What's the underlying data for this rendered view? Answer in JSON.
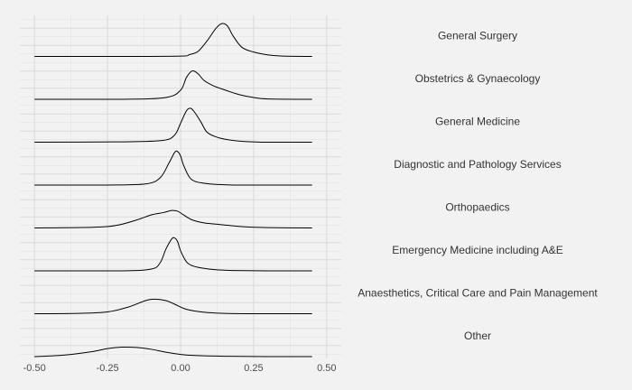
{
  "chart_data": {
    "type": "area",
    "subtype": "density-facets",
    "title": "",
    "xlabel": "",
    "ylabel": "",
    "xlim": [
      -0.55,
      0.55
    ],
    "xticks": [
      -0.5,
      -0.25,
      0.0,
      0.25,
      0.5
    ],
    "xtick_labels": [
      "-0.50",
      "-0.25",
      "0.00",
      "0.25",
      "0.50"
    ],
    "data_range": [
      -0.5,
      0.45
    ],
    "grid": true,
    "background": "#f2f2f2",
    "grid_color": "#d9d9d9",
    "line_color": "#000000",
    "series": [
      {
        "name": "General Surgery",
        "x": [
          -0.5,
          -0.2,
          0.0,
          0.03,
          0.06,
          0.09,
          0.12,
          0.14,
          0.16,
          0.18,
          0.21,
          0.25,
          0.3,
          0.35,
          0.45
        ],
        "y": [
          0.0,
          0.0,
          0.01,
          0.05,
          0.14,
          0.42,
          0.76,
          0.9,
          0.84,
          0.56,
          0.25,
          0.12,
          0.04,
          0.01,
          0.0
        ]
      },
      {
        "name": "Obstetrics & Gynaecology",
        "x": [
          -0.5,
          -0.2,
          -0.05,
          0.0,
          0.02,
          0.04,
          0.06,
          0.08,
          0.11,
          0.15,
          0.2,
          0.25,
          0.3,
          0.45
        ],
        "y": [
          0.0,
          0.0,
          0.05,
          0.25,
          0.6,
          0.78,
          0.7,
          0.52,
          0.38,
          0.26,
          0.13,
          0.05,
          0.01,
          0.0
        ]
      },
      {
        "name": "General Medicine",
        "x": [
          -0.5,
          -0.2,
          -0.06,
          -0.02,
          0.0,
          0.02,
          0.035,
          0.05,
          0.07,
          0.09,
          0.12,
          0.16,
          0.22,
          0.3,
          0.45
        ],
        "y": [
          0.0,
          0.01,
          0.05,
          0.2,
          0.52,
          0.86,
          0.93,
          0.8,
          0.55,
          0.28,
          0.15,
          0.07,
          0.02,
          0.0,
          0.0
        ]
      },
      {
        "name": "Diagnostic and Pathology Services",
        "x": [
          -0.5,
          -0.25,
          -0.12,
          -0.07,
          -0.04,
          -0.02,
          -0.01,
          0.0,
          0.01,
          0.03,
          0.05,
          0.08,
          0.12,
          0.2,
          0.45
        ],
        "y": [
          0.0,
          0.0,
          0.03,
          0.2,
          0.6,
          0.9,
          0.92,
          0.8,
          0.55,
          0.22,
          0.1,
          0.05,
          0.02,
          0.0,
          0.0
        ]
      },
      {
        "name": "Orthopaedics",
        "x": [
          -0.5,
          -0.3,
          -0.22,
          -0.15,
          -0.1,
          -0.06,
          -0.03,
          -0.01,
          0.01,
          0.04,
          0.08,
          0.14,
          0.22,
          0.3,
          0.45
        ],
        "y": [
          0.0,
          0.02,
          0.07,
          0.22,
          0.36,
          0.42,
          0.48,
          0.46,
          0.36,
          0.22,
          0.14,
          0.09,
          0.03,
          0.01,
          0.0
        ]
      },
      {
        "name": "Emergency Medicine including A&E",
        "x": [
          -0.5,
          -0.2,
          -0.1,
          -0.07,
          -0.05,
          -0.03,
          -0.02,
          -0.01,
          0.0,
          0.02,
          0.04,
          0.07,
          0.12,
          0.18,
          0.3,
          0.45
        ],
        "y": [
          0.0,
          0.0,
          0.05,
          0.22,
          0.6,
          0.88,
          0.9,
          0.8,
          0.55,
          0.25,
          0.14,
          0.08,
          0.03,
          0.01,
          0.0,
          0.0
        ]
      },
      {
        "name": "Anaesthetics, Critical Care and Pain Management",
        "x": [
          -0.5,
          -0.35,
          -0.25,
          -0.18,
          -0.12,
          -0.09,
          -0.05,
          -0.02,
          0.02,
          0.08,
          0.15,
          0.25,
          0.45
        ],
        "y": [
          0.0,
          0.01,
          0.05,
          0.18,
          0.36,
          0.4,
          0.36,
          0.26,
          0.12,
          0.04,
          0.01,
          0.0,
          0.0
        ]
      },
      {
        "name": "Other",
        "x": [
          -0.5,
          -0.4,
          -0.3,
          -0.25,
          -0.2,
          -0.15,
          -0.1,
          -0.05,
          0.0,
          0.05,
          0.15,
          0.3,
          0.45
        ],
        "y": [
          0.0,
          0.04,
          0.14,
          0.22,
          0.26,
          0.25,
          0.2,
          0.12,
          0.06,
          0.03,
          0.01,
          0.0,
          0.0
        ]
      }
    ]
  }
}
